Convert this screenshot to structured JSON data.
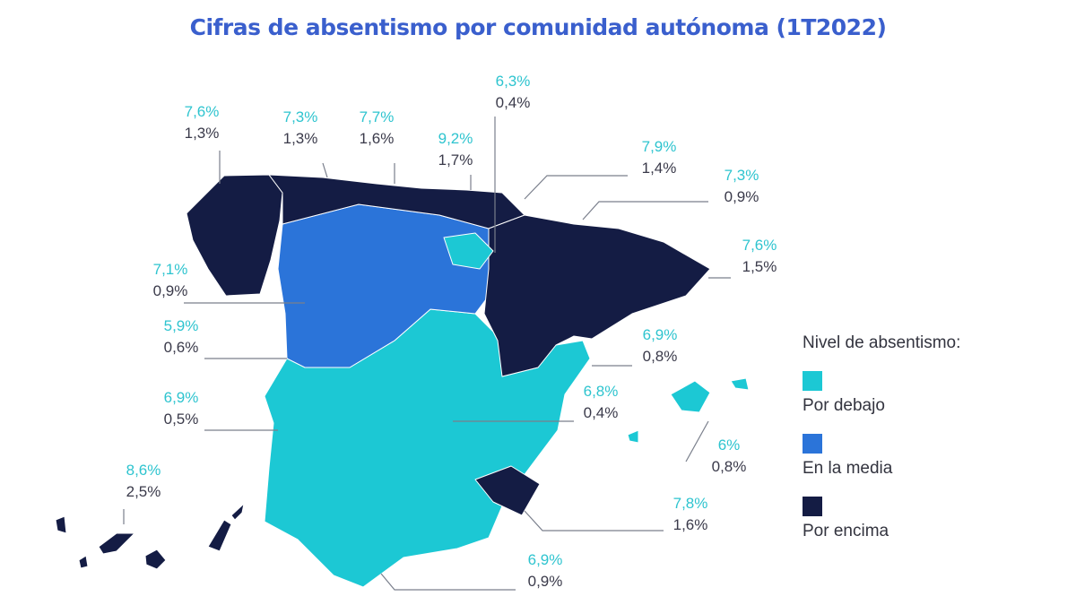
{
  "title": "Cifras de absentismo por comunidad autónoma (1T2022)",
  "colors": {
    "below": "#1cc8d4",
    "average": "#2b74d9",
    "above": "#141c44",
    "title": "#3a5fcd"
  },
  "labels": [
    {
      "region": "galicia",
      "total": "7,6%",
      "second": "1,3%"
    },
    {
      "region": "asturias",
      "total": "7,3%",
      "second": "1,3%"
    },
    {
      "region": "cantabria",
      "total": "7,7%",
      "second": "1,6%"
    },
    {
      "region": "pais-vasco",
      "total": "9,2%",
      "second": "1,7%"
    },
    {
      "region": "la-rioja",
      "total": "6,3%",
      "second": "0,4%"
    },
    {
      "region": "navarra",
      "total": "7,9%",
      "second": "1,4%"
    },
    {
      "region": "aragon",
      "total": "7,3%",
      "second": "0,9%"
    },
    {
      "region": "cataluna",
      "total": "7,6%",
      "second": "1,5%"
    },
    {
      "region": "castilla-y-leon",
      "total": "7,1%",
      "second": "0,9%"
    },
    {
      "region": "madrid",
      "total": "5,9%",
      "second": "0,6%"
    },
    {
      "region": "extremadura",
      "total": "6,9%",
      "second": "0,5%"
    },
    {
      "region": "canarias",
      "total": "8,6%",
      "second": "2,5%"
    },
    {
      "region": "valencia",
      "total": "6,9%",
      "second": "0,8%"
    },
    {
      "region": "castilla-la-mancha",
      "total": "6,8%",
      "second": "0,4%"
    },
    {
      "region": "baleares",
      "total": "6%",
      "second": "0,8%"
    },
    {
      "region": "murcia",
      "total": "7,8%",
      "second": "1,6%"
    },
    {
      "region": "andalucia",
      "total": "6,9%",
      "second": "0,9%"
    }
  ],
  "legend": {
    "title": "Nivel de absentismo:",
    "items": [
      "Por debajo",
      "En la media",
      "Por encima"
    ]
  }
}
